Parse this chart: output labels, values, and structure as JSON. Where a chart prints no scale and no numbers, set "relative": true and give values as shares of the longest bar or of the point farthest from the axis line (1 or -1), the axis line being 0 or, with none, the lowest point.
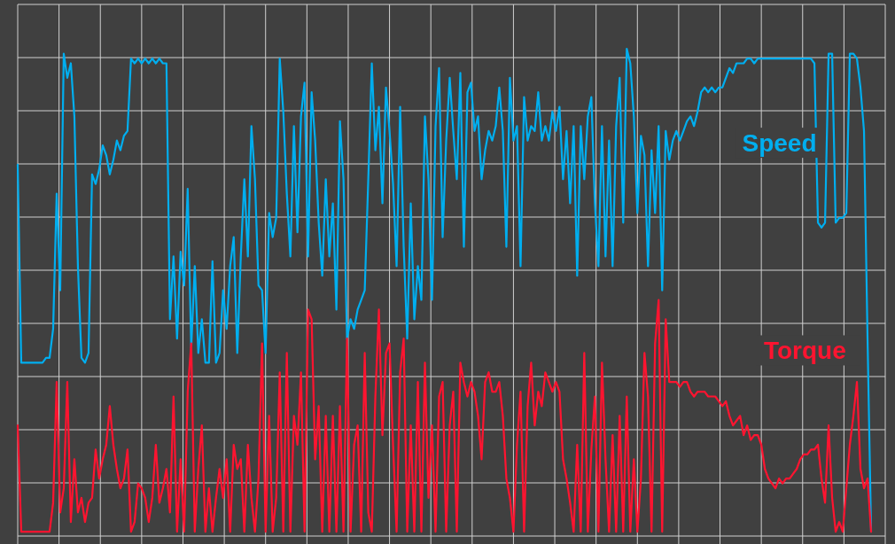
{
  "chart_data": {
    "type": "line",
    "relative": true,
    "grid": true,
    "categories": [
      null,
      null,
      null,
      null,
      null,
      null,
      null,
      null,
      null,
      null,
      null,
      null,
      null,
      null,
      null,
      null,
      null,
      null,
      null,
      null,
      null,
      null,
      null,
      null,
      null,
      null,
      null,
      null,
      null,
      null,
      null,
      null,
      null,
      null,
      null,
      null,
      null,
      null,
      null,
      null,
      null,
      null,
      null,
      null,
      null,
      null,
      null,
      null,
      null,
      null,
      null,
      null,
      null,
      null,
      null,
      null,
      null,
      null,
      null,
      null,
      null,
      null,
      null,
      null,
      null,
      null,
      null,
      null,
      null,
      null,
      null,
      null,
      null,
      null,
      null,
      null,
      null,
      null,
      null,
      null,
      null,
      null,
      null,
      null,
      null,
      null,
      null,
      null,
      null,
      null,
      null,
      null,
      null,
      null,
      null,
      null,
      null,
      null,
      null,
      null,
      null,
      null,
      null,
      null,
      null,
      null,
      null,
      null,
      null,
      null,
      null,
      null,
      null,
      null,
      null,
      null,
      null,
      null,
      null,
      null,
      null,
      null,
      null,
      null,
      null,
      null,
      null,
      null,
      null,
      null,
      null,
      null,
      null,
      null,
      null,
      null,
      null,
      null,
      null,
      null,
      null,
      null,
      null,
      null,
      null,
      null,
      null,
      null,
      null,
      null,
      null,
      null,
      null,
      null,
      null,
      null,
      null,
      null,
      null,
      null,
      null,
      null,
      null,
      null,
      null,
      null,
      null,
      null,
      null,
      null,
      null,
      null,
      null,
      null,
      null,
      null,
      null,
      null,
      null,
      null,
      null,
      null,
      null,
      null,
      null,
      null,
      null,
      null,
      null,
      null,
      null,
      null,
      null,
      null,
      null,
      null,
      null,
      null,
      null,
      null,
      null,
      null,
      null,
      null,
      null,
      null,
      null,
      null,
      null,
      null,
      null,
      null,
      null,
      null,
      null,
      null,
      null,
      null,
      null,
      null,
      null,
      null,
      null,
      null,
      null,
      null,
      null,
      null,
      null,
      null,
      null,
      null,
      null,
      null,
      null,
      null,
      null,
      null,
      null,
      null,
      null,
      null,
      null,
      null,
      null,
      null
    ],
    "series": [
      {
        "name": "Speed",
        "color": "#00aeef",
        "values": [
          0.76,
          0.35,
          0.35,
          0.35,
          0.35,
          0.35,
          0.35,
          0.35,
          0.36,
          0.36,
          0.42,
          0.7,
          0.5,
          0.99,
          0.94,
          0.97,
          0.86,
          0.55,
          0.36,
          0.35,
          0.37,
          0.74,
          0.72,
          0.75,
          0.8,
          0.78,
          0.74,
          0.77,
          0.81,
          0.79,
          0.82,
          0.83,
          0.98,
          0.97,
          0.98,
          0.97,
          0.98,
          0.97,
          0.98,
          0.97,
          0.98,
          0.97,
          0.97,
          0.44,
          0.57,
          0.4,
          0.58,
          0.51,
          0.71,
          0.38,
          0.55,
          0.37,
          0.44,
          0.35,
          0.35,
          0.56,
          0.35,
          0.37,
          0.5,
          0.42,
          0.55,
          0.61,
          0.37,
          0.57,
          0.73,
          0.57,
          0.84,
          0.73,
          0.51,
          0.5,
          0.37,
          0.66,
          0.61,
          0.65,
          0.98,
          0.87,
          0.7,
          0.57,
          0.84,
          0.62,
          0.86,
          0.93,
          0.57,
          0.91,
          0.81,
          0.64,
          0.53,
          0.73,
          0.57,
          0.68,
          0.46,
          0.85,
          0.73,
          0.4,
          0.44,
          0.42,
          0.46,
          0.48,
          0.5,
          0.73,
          0.97,
          0.79,
          0.88,
          0.68,
          0.92,
          0.83,
          0.72,
          0.55,
          0.88,
          0.59,
          0.4,
          0.68,
          0.44,
          0.55,
          0.48,
          0.86,
          0.73,
          0.48,
          0.84,
          0.96,
          0.61,
          0.81,
          0.94,
          0.83,
          0.73,
          0.95,
          0.59,
          0.91,
          0.93,
          0.83,
          0.86,
          0.73,
          0.79,
          0.83,
          0.81,
          0.84,
          0.92,
          0.83,
          0.59,
          0.94,
          0.81,
          0.84,
          0.55,
          0.9,
          0.81,
          0.84,
          0.83,
          0.91,
          0.81,
          0.84,
          0.81,
          0.87,
          0.83,
          0.88,
          0.73,
          0.83,
          0.68,
          0.84,
          0.53,
          0.84,
          0.73,
          0.86,
          0.9,
          0.68,
          0.55,
          0.84,
          0.57,
          0.81,
          0.55,
          0.84,
          0.94,
          0.64,
          1.0,
          0.97,
          0.86,
          0.66,
          0.82,
          0.78,
          0.55,
          0.79,
          0.66,
          0.84,
          0.5,
          0.83,
          0.77,
          0.81,
          0.83,
          0.81,
          0.83,
          0.85,
          0.86,
          0.84,
          0.87,
          0.91,
          0.92,
          0.91,
          0.92,
          0.91,
          0.92,
          0.92,
          0.94,
          0.96,
          0.95,
          0.97,
          0.97,
          0.97,
          0.98,
          0.98,
          0.97,
          0.98,
          0.98,
          0.98,
          0.98,
          0.98,
          0.98,
          0.98,
          0.98,
          0.98,
          0.98,
          0.98,
          0.98,
          0.98,
          0.98,
          0.98,
          0.98,
          0.97,
          0.64,
          0.63,
          0.64,
          0.99,
          0.99,
          0.64,
          0.65,
          0.65,
          0.66,
          0.99,
          0.99,
          0.98,
          0.92,
          0.83,
          0.4,
          0,
          null,
          null,
          null,
          null
        ]
      },
      {
        "name": "Torque",
        "color": "#ff1430",
        "values": [
          0.22,
          0,
          0,
          0,
          0,
          0,
          0,
          0,
          0,
          0,
          0.06,
          0.31,
          0.04,
          0.09,
          0.31,
          0.02,
          0.15,
          0.04,
          0.07,
          0.02,
          0.06,
          0.07,
          0.17,
          0.11,
          0.15,
          0.18,
          0.26,
          0.18,
          0.13,
          0.09,
          0.11,
          0.17,
          0,
          0.02,
          0.1,
          0.09,
          0.07,
          0.02,
          0.07,
          0.18,
          0.06,
          0.09,
          0.13,
          0.04,
          0.28,
          0,
          0.15,
          0,
          0.29,
          0.39,
          0,
          0.13,
          0.22,
          0,
          0.09,
          0,
          0.07,
          0.13,
          0.07,
          0.15,
          0,
          0.18,
          0.13,
          0.15,
          0,
          0.18,
          0.07,
          0,
          0.11,
          0.39,
          0,
          0.24,
          0,
          0.07,
          0.33,
          0,
          0.37,
          0,
          0.24,
          0.18,
          0.33,
          0,
          0.46,
          0.44,
          0.15,
          0.26,
          0,
          0.24,
          0,
          0.24,
          0,
          0.26,
          0,
          0.4,
          0,
          0.18,
          0.22,
          0,
          0.37,
          0.04,
          0,
          0.28,
          0.46,
          0.2,
          0.37,
          0.39,
          0.18,
          0,
          0.33,
          0.4,
          0,
          0.22,
          0,
          0.31,
          0,
          0.35,
          0.07,
          0.22,
          0,
          0.28,
          0.31,
          0,
          0.22,
          0.29,
          0,
          0.35,
          0.31,
          0.28,
          0.31,
          0.29,
          0.24,
          0.15,
          0.31,
          0.33,
          0.29,
          0.29,
          0.31,
          0.24,
          0.11,
          0.07,
          0,
          0.18,
          0.29,
          0,
          0.26,
          0.35,
          0.22,
          0.29,
          0.26,
          0.33,
          0.31,
          0.29,
          0.31,
          0.29,
          0.15,
          0.11,
          0.06,
          0,
          0.18,
          0,
          0.37,
          0,
          0.17,
          0.28,
          0,
          0.35,
          0.15,
          0,
          0.2,
          0,
          0.24,
          0,
          0.28,
          0,
          0.15,
          0,
          0.11,
          0.37,
          0.28,
          0,
          0.39,
          0.48,
          0,
          0.44,
          0.31,
          0.31,
          0.31,
          0.3,
          0.31,
          0.31,
          0.29,
          0.28,
          0.29,
          0.29,
          0.29,
          0.28,
          0.28,
          0.28,
          0.27,
          0.26,
          0.27,
          0.24,
          0.22,
          0.23,
          0.24,
          0.2,
          0.22,
          0.19,
          0.2,
          0.2,
          0.18,
          0.13,
          0.11,
          0.1,
          0.09,
          0.11,
          0.1,
          0.11,
          0.11,
          0.12,
          0.13,
          0.15,
          0.16,
          0.16,
          0.17,
          0.17,
          0.18,
          0.11,
          0.06,
          0.22,
          0.07,
          0,
          0.02,
          0,
          0.09,
          0.18,
          0.24,
          0.31,
          0.13,
          0.09,
          0.11,
          0,
          null,
          null,
          null,
          null
        ]
      }
    ]
  }
}
